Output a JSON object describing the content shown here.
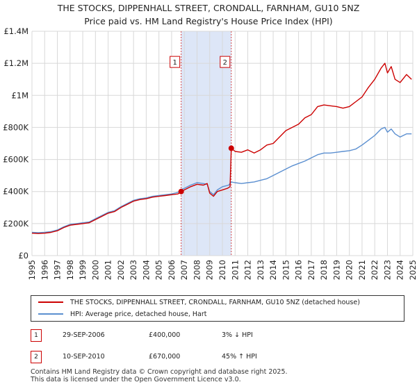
{
  "title": {
    "line1": "THE STOCKS, DIPPENHALL STREET, CRONDALL, FARNHAM, GU10 5NZ",
    "line2": "Price paid vs. HM Land Registry's House Price Index (HPI)"
  },
  "colors": {
    "property": "#cc0000",
    "hpi": "#5b8fd0",
    "band": "#dde6f7",
    "grid": "#d8d8d8"
  },
  "chart_data": {
    "type": "line",
    "title": "Price paid vs. HM Land Registry's House Price Index (HPI)",
    "xlabel": "",
    "ylabel": "",
    "xlim": [
      1995,
      2025
    ],
    "ylim": [
      0,
      1400000
    ],
    "y_ticks": [
      0,
      200000,
      400000,
      600000,
      800000,
      1000000,
      1200000,
      1400000
    ],
    "y_tick_labels": [
      "£0",
      "£200K",
      "£400K",
      "£600K",
      "£800K",
      "£1M",
      "£1.2M",
      "£1.4M"
    ],
    "x_ticks": [
      1995,
      1996,
      1997,
      1998,
      1999,
      2000,
      2001,
      2002,
      2003,
      2004,
      2005,
      2006,
      2007,
      2008,
      2009,
      2010,
      2011,
      2012,
      2013,
      2014,
      2015,
      2016,
      2017,
      2018,
      2019,
      2020,
      2021,
      2022,
      2023,
      2024,
      2025
    ],
    "x_tick_labels": [
      "1995",
      "1996",
      "1997",
      "1998",
      "1999",
      "2000",
      "2001",
      "2002",
      "2003",
      "2004",
      "2005",
      "2006",
      "2007",
      "2008",
      "2009",
      "2010",
      "2011",
      "2012",
      "2013",
      "2014",
      "2015",
      "2016",
      "2017",
      "2018",
      "2019",
      "2020",
      "2021",
      "2022",
      "2023",
      "2024",
      "2025"
    ],
    "shaded_band": [
      2006.75,
      2010.7
    ],
    "series": [
      {
        "name": "THE STOCKS, DIPPENHALL STREET, CRONDALL, FARNHAM, GU10 5NZ (detached house)",
        "color": "#cc0000",
        "points": [
          [
            1995.0,
            140000
          ],
          [
            1995.5,
            138000
          ],
          [
            1996.0,
            140000
          ],
          [
            1996.5,
            145000
          ],
          [
            1997.0,
            155000
          ],
          [
            1997.5,
            175000
          ],
          [
            1998.0,
            190000
          ],
          [
            1998.5,
            195000
          ],
          [
            1999.0,
            200000
          ],
          [
            1999.5,
            205000
          ],
          [
            2000.0,
            225000
          ],
          [
            2000.5,
            245000
          ],
          [
            2001.0,
            265000
          ],
          [
            2001.5,
            275000
          ],
          [
            2002.0,
            300000
          ],
          [
            2002.5,
            320000
          ],
          [
            2003.0,
            340000
          ],
          [
            2003.5,
            350000
          ],
          [
            2004.0,
            355000
          ],
          [
            2004.5,
            365000
          ],
          [
            2005.0,
            370000
          ],
          [
            2005.5,
            375000
          ],
          [
            2006.0,
            380000
          ],
          [
            2006.5,
            385000
          ],
          [
            2006.75,
            400000
          ],
          [
            2007.0,
            410000
          ],
          [
            2007.5,
            430000
          ],
          [
            2008.0,
            445000
          ],
          [
            2008.5,
            440000
          ],
          [
            2008.8,
            450000
          ],
          [
            2009.0,
            390000
          ],
          [
            2009.3,
            370000
          ],
          [
            2009.6,
            400000
          ],
          [
            2010.0,
            410000
          ],
          [
            2010.4,
            420000
          ],
          [
            2010.6,
            430000
          ],
          [
            2010.7,
            670000
          ],
          [
            2011.0,
            650000
          ],
          [
            2011.5,
            645000
          ],
          [
            2012.0,
            660000
          ],
          [
            2012.5,
            640000
          ],
          [
            2013.0,
            660000
          ],
          [
            2013.5,
            690000
          ],
          [
            2014.0,
            700000
          ],
          [
            2014.5,
            740000
          ],
          [
            2015.0,
            780000
          ],
          [
            2015.5,
            800000
          ],
          [
            2016.0,
            820000
          ],
          [
            2016.5,
            860000
          ],
          [
            2017.0,
            880000
          ],
          [
            2017.5,
            930000
          ],
          [
            2018.0,
            940000
          ],
          [
            2018.5,
            935000
          ],
          [
            2019.0,
            930000
          ],
          [
            2019.5,
            920000
          ],
          [
            2020.0,
            930000
          ],
          [
            2020.5,
            960000
          ],
          [
            2021.0,
            990000
          ],
          [
            2021.5,
            1050000
          ],
          [
            2022.0,
            1100000
          ],
          [
            2022.5,
            1170000
          ],
          [
            2022.8,
            1200000
          ],
          [
            2023.0,
            1140000
          ],
          [
            2023.3,
            1180000
          ],
          [
            2023.6,
            1100000
          ],
          [
            2024.0,
            1080000
          ],
          [
            2024.5,
            1130000
          ],
          [
            2024.9,
            1100000
          ]
        ]
      },
      {
        "name": "HPI: Average price, detached house, Hart",
        "color": "#5b8fd0",
        "points": [
          [
            1995.0,
            145000
          ],
          [
            1995.5,
            143000
          ],
          [
            1996.0,
            145000
          ],
          [
            1996.5,
            150000
          ],
          [
            1997.0,
            160000
          ],
          [
            1997.5,
            180000
          ],
          [
            1998.0,
            195000
          ],
          [
            1998.5,
            200000
          ],
          [
            1999.0,
            205000
          ],
          [
            1999.5,
            210000
          ],
          [
            2000.0,
            230000
          ],
          [
            2000.5,
            250000
          ],
          [
            2001.0,
            270000
          ],
          [
            2001.5,
            280000
          ],
          [
            2002.0,
            305000
          ],
          [
            2002.5,
            325000
          ],
          [
            2003.0,
            345000
          ],
          [
            2003.5,
            355000
          ],
          [
            2004.0,
            360000
          ],
          [
            2004.5,
            370000
          ],
          [
            2005.0,
            375000
          ],
          [
            2005.5,
            380000
          ],
          [
            2006.0,
            385000
          ],
          [
            2006.5,
            395000
          ],
          [
            2006.75,
            412000
          ],
          [
            2007.0,
            420000
          ],
          [
            2007.5,
            440000
          ],
          [
            2008.0,
            455000
          ],
          [
            2008.5,
            450000
          ],
          [
            2008.8,
            445000
          ],
          [
            2009.0,
            400000
          ],
          [
            2009.3,
            380000
          ],
          [
            2009.6,
            410000
          ],
          [
            2010.0,
            430000
          ],
          [
            2010.5,
            440000
          ],
          [
            2010.7,
            460000
          ],
          [
            2011.0,
            455000
          ],
          [
            2011.5,
            450000
          ],
          [
            2012.0,
            455000
          ],
          [
            2012.5,
            460000
          ],
          [
            2013.0,
            470000
          ],
          [
            2013.5,
            480000
          ],
          [
            2014.0,
            500000
          ],
          [
            2014.5,
            520000
          ],
          [
            2015.0,
            540000
          ],
          [
            2015.5,
            560000
          ],
          [
            2016.0,
            575000
          ],
          [
            2016.5,
            590000
          ],
          [
            2017.0,
            610000
          ],
          [
            2017.5,
            630000
          ],
          [
            2018.0,
            640000
          ],
          [
            2018.5,
            640000
          ],
          [
            2019.0,
            645000
          ],
          [
            2019.5,
            650000
          ],
          [
            2020.0,
            655000
          ],
          [
            2020.5,
            665000
          ],
          [
            2021.0,
            690000
          ],
          [
            2021.5,
            720000
          ],
          [
            2022.0,
            750000
          ],
          [
            2022.5,
            790000
          ],
          [
            2022.8,
            800000
          ],
          [
            2023.0,
            770000
          ],
          [
            2023.3,
            790000
          ],
          [
            2023.6,
            760000
          ],
          [
            2024.0,
            740000
          ],
          [
            2024.5,
            760000
          ],
          [
            2024.9,
            760000
          ]
        ]
      }
    ],
    "sales": [
      {
        "id": "1",
        "x": 2006.75,
        "price": 400000
      },
      {
        "id": "2",
        "x": 2010.7,
        "price": 670000
      }
    ]
  },
  "legend": {
    "property_label": "THE STOCKS, DIPPENHALL STREET, CRONDALL, FARNHAM, GU10 5NZ (detached house)",
    "hpi_label": "HPI: Average price, detached house, Hart"
  },
  "sales_table": [
    {
      "id": "1",
      "date": "29-SEP-2006",
      "price": "£400,000",
      "hpi": "3% ↓ HPI"
    },
    {
      "id": "2",
      "date": "10-SEP-2010",
      "price": "£670,000",
      "hpi": "45% ↑ HPI"
    }
  ],
  "footer": {
    "line1": "Contains HM Land Registry data © Crown copyright and database right 2025.",
    "line2": "This data is licensed under the Open Government Licence v3.0."
  }
}
